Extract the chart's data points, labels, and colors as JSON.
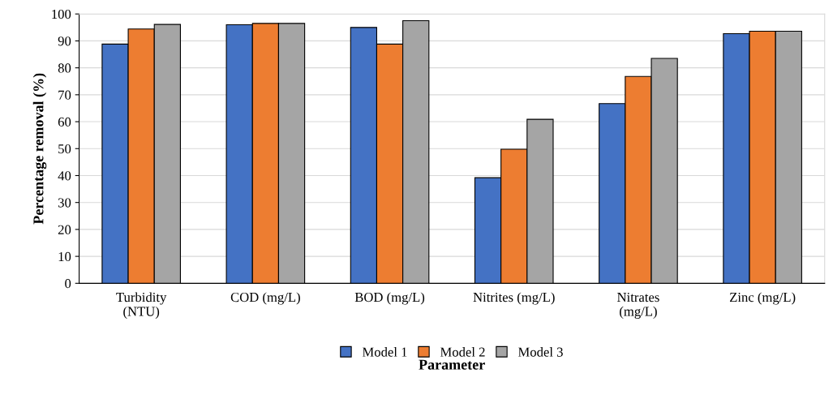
{
  "chart_data": {
    "type": "bar",
    "xlabel": "Parameter",
    "ylabel": "Percentage removal (%)",
    "categories": [
      "Turbidity\n(NTU)",
      "COD (mg/L)",
      "BOD (mg/L)",
      "Nitrites (mg/L)",
      "Nitrates\n(mg/L)",
      "Zinc (mg/L)"
    ],
    "series": [
      {
        "name": "Model 1",
        "color": "#4472c4",
        "values": [
          88.8,
          96.0,
          95.0,
          39.2,
          66.7,
          92.7
        ]
      },
      {
        "name": "Model 2",
        "color": "#ed7d31",
        "values": [
          94.4,
          96.5,
          88.8,
          49.8,
          76.8,
          93.6
        ]
      },
      {
        "name": "Model 3",
        "color": "#a5a5a5",
        "values": [
          96.1,
          96.5,
          97.5,
          60.9,
          83.5,
          93.6
        ]
      }
    ],
    "ylim": [
      0,
      100
    ],
    "yticks": [
      0,
      10,
      20,
      30,
      40,
      50,
      60,
      70,
      80,
      90,
      100
    ],
    "grid": "y",
    "legend": "bottom"
  }
}
